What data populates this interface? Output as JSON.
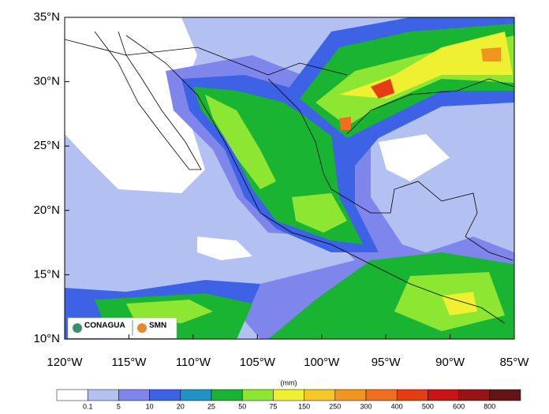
{
  "map": {
    "lat_labels": [
      "35°N",
      "30°N",
      "25°N",
      "20°N",
      "15°N",
      "10°N"
    ],
    "lon_labels": [
      "120°W",
      "115°W",
      "110°W",
      "105°W",
      "100°W",
      "95°W",
      "90°W",
      "85°W"
    ]
  },
  "colorbar": {
    "unit": "(mm)",
    "levels": [
      "0.1",
      "5",
      "10",
      "20",
      "25",
      "50",
      "75",
      "150",
      "250",
      "300",
      "400",
      "500",
      "600",
      "800"
    ],
    "colors": [
      "#ffffff",
      "#b3c1f2",
      "#7e86eb",
      "#3d62e6",
      "#1f94c4",
      "#19b432",
      "#8ce632",
      "#f0f032",
      "#f5c828",
      "#f0961e",
      "#f06e1e",
      "#e63c14",
      "#c81414",
      "#961414",
      "#641414"
    ]
  },
  "logos": {
    "left": "CONAGUA",
    "right": "SMN"
  }
}
